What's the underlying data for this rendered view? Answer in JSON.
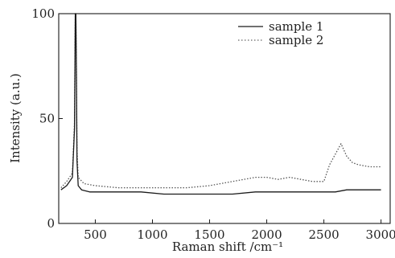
{
  "chart_data": {
    "type": "line",
    "title": "",
    "xlabel": "Raman shift /cm⁻¹",
    "ylabel": "Intensity (a.u.)",
    "xlim": [
      180,
      3080
    ],
    "ylim": [
      0,
      100
    ],
    "x_ticks": [
      500,
      1000,
      1500,
      2000,
      2500,
      3000
    ],
    "y_ticks": [
      0,
      50,
      100
    ],
    "x_tick_labels": [
      "500",
      "1000",
      "1500",
      "2000",
      "2500",
      "3000"
    ],
    "y_tick_labels": [
      "0",
      "50",
      "100"
    ],
    "grid": false,
    "legend_position": "top-right",
    "series": [
      {
        "name": "sample 1",
        "color": "#1a1a1a",
        "line_style": "solid",
        "x": [
          200,
          250,
          300,
          318,
          325,
          330,
          335,
          340,
          350,
          380,
          450,
          500,
          700,
          900,
          1100,
          1300,
          1500,
          1700,
          1900,
          2100,
          2300,
          2500,
          2600,
          2700,
          2800,
          2900,
          3000
        ],
        "y": [
          16,
          18,
          22,
          45,
          100,
          100,
          70,
          30,
          18,
          16,
          15,
          15,
          15,
          15,
          14,
          14,
          14,
          14,
          15,
          15,
          15,
          15,
          15,
          16,
          16,
          16,
          16
        ]
      },
      {
        "name": "sample 2",
        "color": "#555555",
        "line_style": "dotted",
        "x": [
          200,
          250,
          300,
          318,
          325,
          330,
          335,
          340,
          350,
          400,
          500,
          700,
          900,
          1100,
          1300,
          1500,
          1700,
          1800,
          1900,
          2000,
          2100,
          2200,
          2300,
          2400,
          2500,
          2550,
          2600,
          2650,
          2700,
          2750,
          2800,
          2900,
          3000
        ],
        "y": [
          17,
          20,
          24,
          48,
          100,
          100,
          72,
          35,
          22,
          19,
          18,
          17,
          17,
          17,
          17,
          18,
          20,
          21,
          22,
          22,
          21,
          22,
          21,
          20,
          20,
          28,
          33,
          38,
          32,
          29,
          28,
          27,
          27
        ]
      }
    ]
  }
}
